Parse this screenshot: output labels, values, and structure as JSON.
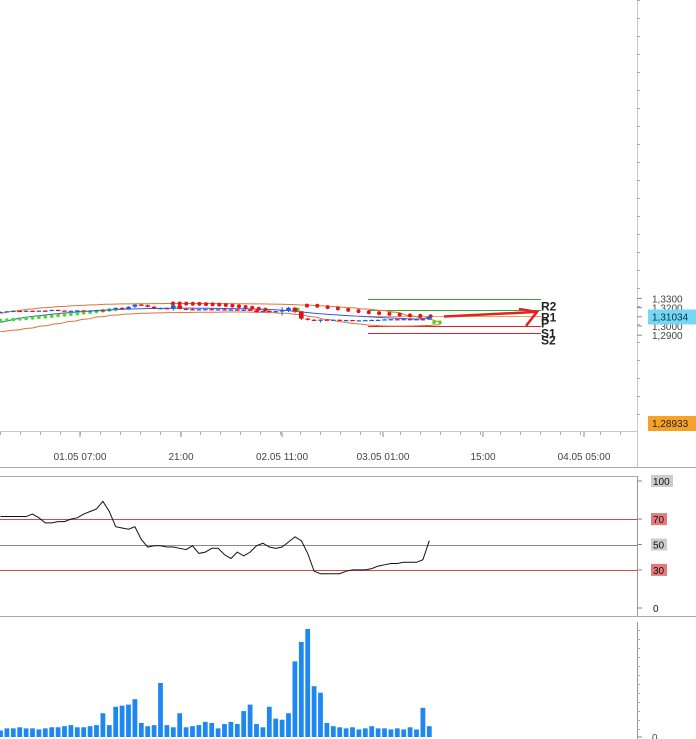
{
  "chart_data": [
    {
      "type": "candlestick",
      "title": "",
      "price_axis": {
        "ticks": [
          "1,3300",
          "1,3200",
          "1,3100",
          "1,3000",
          "1,2900"
        ],
        "range": [
          1.2885,
          1.3345
        ]
      },
      "time_axis": {
        "ticks": [
          "01.05 07:00",
          "21:00",
          "02.05 11:00",
          "03.05 01:00",
          "15:00",
          "04.05 05:00"
        ]
      },
      "current_price_tag": "1,31034",
      "low_price_tag": "1,28933",
      "candles": [
        [
          1.315,
          1.3157,
          1.3145,
          1.3152
        ],
        [
          1.3152,
          1.3163,
          1.3149,
          1.316
        ],
        [
          1.316,
          1.3168,
          1.3157,
          1.3164
        ],
        [
          1.3164,
          1.3167,
          1.3158,
          1.3161
        ],
        [
          1.3161,
          1.317,
          1.3158,
          1.3166
        ],
        [
          1.3166,
          1.3168,
          1.3161,
          1.3163
        ],
        [
          1.3163,
          1.3169,
          1.316,
          1.3167
        ],
        [
          1.3167,
          1.3172,
          1.3162,
          1.3164
        ],
        [
          1.3164,
          1.3178,
          1.3161,
          1.3175
        ],
        [
          1.3175,
          1.3179,
          1.3164,
          1.3168
        ],
        [
          1.3168,
          1.317,
          1.316,
          1.3162
        ],
        [
          1.3162,
          1.3168,
          1.3158,
          1.3166
        ],
        [
          1.3166,
          1.3173,
          1.3162,
          1.317
        ],
        [
          1.317,
          1.3172,
          1.3163,
          1.3165
        ],
        [
          1.3165,
          1.3171,
          1.3161,
          1.3168
        ],
        [
          1.3168,
          1.3175,
          1.3164,
          1.3171
        ],
        [
          1.3171,
          1.3178,
          1.3167,
          1.3169
        ],
        [
          1.3169,
          1.3182,
          1.3165,
          1.3179
        ],
        [
          1.3179,
          1.32,
          1.3175,
          1.3197
        ],
        [
          1.3197,
          1.3205,
          1.3176,
          1.3181
        ],
        [
          1.3181,
          1.3214,
          1.3178,
          1.3209
        ],
        [
          1.3209,
          1.3239,
          1.3196,
          1.3232
        ],
        [
          1.3232,
          1.3245,
          1.322,
          1.3225
        ],
        [
          1.3225,
          1.3233,
          1.3203,
          1.3208
        ],
        [
          1.3208,
          1.322,
          1.3183,
          1.319
        ],
        [
          1.319,
          1.32,
          1.3183,
          1.3195
        ],
        [
          1.3195,
          1.32,
          1.318,
          1.3186
        ],
        [
          1.3186,
          1.3227,
          1.3168,
          1.3223
        ],
        [
          1.3223,
          1.3226,
          1.3182,
          1.3186
        ],
        [
          1.3186,
          1.3191,
          1.3178,
          1.3183
        ],
        [
          1.3183,
          1.319,
          1.3176,
          1.318
        ],
        [
          1.318,
          1.3186,
          1.3173,
          1.3181
        ],
        [
          1.3181,
          1.3187,
          1.3177,
          1.3183
        ],
        [
          1.3183,
          1.3189,
          1.3175,
          1.3178
        ],
        [
          1.3178,
          1.3186,
          1.3174,
          1.3181
        ],
        [
          1.3181,
          1.3185,
          1.3172,
          1.3176
        ],
        [
          1.3176,
          1.3186,
          1.3171,
          1.3179
        ],
        [
          1.3179,
          1.3182,
          1.3168,
          1.3172
        ],
        [
          1.3172,
          1.318,
          1.3167,
          1.3177
        ],
        [
          1.3177,
          1.3181,
          1.3166,
          1.317
        ],
        [
          1.317,
          1.3178,
          1.3147,
          1.315
        ],
        [
          1.315,
          1.3168,
          1.3147,
          1.3165
        ],
        [
          1.3165,
          1.317,
          1.3148,
          1.3152
        ],
        [
          1.3152,
          1.3165,
          1.3149,
          1.3162
        ],
        [
          1.3162,
          1.3205,
          1.3115,
          1.317
        ],
        [
          1.317,
          1.3208,
          1.3152,
          1.3198
        ],
        [
          1.3198,
          1.3206,
          1.314,
          1.316
        ],
        [
          1.316,
          1.3163,
          1.3065,
          1.308
        ],
        [
          1.308,
          1.3087,
          1.306,
          1.3068
        ],
        [
          1.3068,
          1.3074,
          1.3054,
          1.3063
        ],
        [
          1.3063,
          1.3072,
          1.3038,
          1.3069
        ],
        [
          1.3069,
          1.3074,
          1.306,
          1.3065
        ],
        [
          1.3065,
          1.3072,
          1.3061,
          1.3068
        ],
        [
          1.3068,
          1.307,
          1.3056,
          1.3058
        ],
        [
          1.3058,
          1.3068,
          1.3054,
          1.3065
        ],
        [
          1.3065,
          1.3067,
          1.3056,
          1.3059
        ],
        [
          1.3059,
          1.3064,
          1.3056,
          1.3062
        ],
        [
          1.3062,
          1.3068,
          1.3058,
          1.3064
        ],
        [
          1.3064,
          1.307,
          1.306,
          1.3066
        ],
        [
          1.3066,
          1.3071,
          1.3062,
          1.3067
        ],
        [
          1.3067,
          1.3075,
          1.3063,
          1.3072
        ],
        [
          1.3072,
          1.3076,
          1.3068,
          1.3074
        ],
        [
          1.3074,
          1.3078,
          1.3069,
          1.3071
        ],
        [
          1.3071,
          1.3077,
          1.3067,
          1.3075
        ],
        [
          1.3075,
          1.3079,
          1.307,
          1.3072
        ],
        [
          1.3072,
          1.3076,
          1.3067,
          1.3074
        ],
        [
          1.3074,
          1.3077,
          1.3062,
          1.307
        ],
        [
          1.307,
          1.3105,
          1.3066,
          1.3103
        ]
      ],
      "ma": [
        1.304,
        1.3055,
        1.307,
        1.3085,
        1.3095,
        1.3105,
        1.3112,
        1.312,
        1.3128,
        1.3135,
        1.3141,
        1.3147,
        1.3152,
        1.3158,
        1.3163,
        1.3168,
        1.3172,
        1.3175,
        1.3179,
        1.3182,
        1.3184,
        1.3186,
        1.3188,
        1.319,
        1.3191,
        1.3192,
        1.3193,
        1.3194,
        1.3194,
        1.3194,
        1.3194,
        1.3193,
        1.3193,
        1.3192,
        1.3191,
        1.319,
        1.3189,
        1.3188,
        1.3187,
        1.3186,
        1.3184,
        1.3182,
        1.3179,
        1.3176,
        1.3172,
        1.3167,
        1.316,
        1.3153,
        1.3146,
        1.3139,
        1.3133,
        1.3128,
        1.3123,
        1.3118,
        1.3114,
        1.311,
        1.3106,
        1.3102,
        1.3098,
        1.3094,
        1.309,
        1.3087,
        1.3084,
        1.3081,
        1.3078,
        1.3076,
        1.308,
        1.3098
      ],
      "bb_upper": [
        1.314,
        1.3165,
        1.3185,
        1.32,
        1.3212,
        1.3222,
        1.323,
        1.3236,
        1.324,
        1.3242,
        1.3243,
        1.3244,
        1.3244,
        1.3244,
        1.3244,
        1.3243,
        1.3242,
        1.324,
        1.3238,
        1.3234,
        1.3228,
        1.322,
        1.321,
        1.3198,
        1.3185,
        1.317,
        1.315,
        1.311,
        1.308,
        1.3045
      ],
      "bb_lower": [
        1.294,
        1.2955,
        1.2975,
        1.3,
        1.3025,
        1.305,
        1.3075,
        1.31,
        1.3118,
        1.313,
        1.3138,
        1.3142,
        1.3145,
        1.3147,
        1.3149,
        1.315,
        1.3152,
        1.3152,
        1.315,
        1.3145,
        1.3138,
        1.3125,
        1.31,
        1.307,
        1.3045,
        1.3025,
        1.301,
        1.3,
        1.2998,
        1.3,
        1.3005,
        1.3015
      ],
      "sar_up": [
        1.306,
        1.3065,
        1.307,
        1.3076,
        1.3082,
        1.3088,
        1.3094,
        1.31,
        1.3107,
        1.3114,
        1.3121,
        1.3128,
        1.3135,
        1.3142,
        1.315,
        1.3158,
        1.3166,
        1.3175,
        1.318,
        1.3181,
        1.3182
      ],
      "sar_down": [
        1.3245,
        1.3244,
        1.3243,
        1.3242,
        1.324,
        1.3238,
        1.3235,
        1.3232,
        1.3228,
        1.3222,
        1.3215,
        1.3207,
        1.3198,
        1.3188,
        1.3178,
        1.3222,
        1.322,
        1.3205,
        1.319,
        1.3175,
        1.3162,
        1.315,
        1.314,
        1.3132,
        1.3124,
        1.3116,
        1.311,
        1.3106
      ],
      "pivot_levels": [
        {
          "label": "R2",
          "value": 1.329,
          "color": "#33aa33"
        },
        {
          "label": "R1",
          "value": 1.3178,
          "color": "#33aa33"
        },
        {
          "label": "P",
          "value": 1.3107,
          "color": "#f0a050"
        },
        {
          "label": "S1",
          "value": 1.2996,
          "color": "#dd2222"
        },
        {
          "label": "S2",
          "value": 1.2926,
          "color": "#dd2222"
        }
      ],
      "forecast_arrow": {
        "from": 1.3103,
        "to": 1.3153
      }
    },
    {
      "type": "line",
      "title": "",
      "y_ticks": [
        "100",
        "70",
        "50",
        "30",
        "0"
      ],
      "levels": [
        70,
        50,
        30
      ],
      "ylim": [
        0,
        100
      ],
      "values": [
        72,
        72,
        72,
        72,
        72,
        74,
        71,
        67,
        67,
        68,
        68,
        70,
        71,
        74,
        76,
        78,
        84,
        76,
        64,
        63,
        62,
        64,
        54,
        48,
        49,
        49,
        48,
        48,
        47,
        46,
        49,
        43,
        44,
        47,
        47,
        42,
        39,
        44,
        41,
        44,
        49,
        51,
        48,
        47,
        48,
        52,
        56,
        53,
        43,
        29,
        27,
        27,
        27,
        27,
        29,
        30,
        30,
        30,
        31,
        33,
        34,
        35,
        35,
        36,
        36,
        36,
        38,
        53
      ]
    },
    {
      "type": "bar",
      "title": "",
      "y_ticks": [
        "0"
      ],
      "values": [
        6,
        8,
        8,
        9,
        8,
        8,
        7,
        8,
        9,
        9,
        10,
        11,
        9,
        9,
        10,
        11,
        22,
        11,
        28,
        29,
        30,
        35,
        13,
        10,
        11,
        50,
        11,
        9,
        22,
        9,
        10,
        11,
        14,
        13,
        8,
        12,
        14,
        12,
        24,
        30,
        12,
        9,
        28,
        17,
        16,
        22,
        70,
        88,
        100,
        47,
        41,
        13,
        10,
        9,
        8,
        9,
        7,
        8,
        10,
        8,
        8,
        7,
        8,
        7,
        9,
        7,
        27,
        10
      ]
    }
  ]
}
